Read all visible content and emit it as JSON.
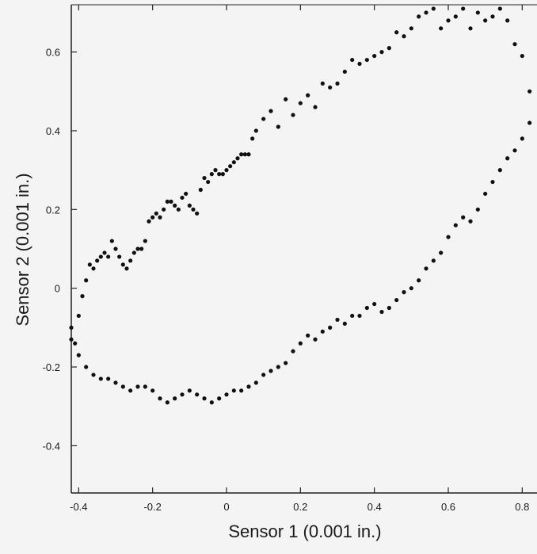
{
  "chart_data": {
    "type": "scatter",
    "title": "",
    "xlabel": "Sensor 1 (0.001 in.)",
    "ylabel": "Sensor 2 (0.001 in.)",
    "xlim": [
      -0.42,
      0.84
    ],
    "ylim": [
      -0.52,
      0.72
    ],
    "xticks": [
      -0.4,
      -0.2,
      0,
      0.2,
      0.4,
      0.6,
      0.8
    ],
    "xtick_labels": [
      "-0.4",
      "-0.2",
      "0",
      "0.2",
      "0.4",
      "0.6",
      "0.8"
    ],
    "yticks": [
      -0.4,
      -0.2,
      0,
      0.2,
      0.4,
      0.6
    ],
    "ytick_labels": [
      "-0.4",
      "-0.2",
      "0",
      "0.2",
      "0.4",
      "0.6"
    ],
    "grid": false,
    "legend": "none",
    "marker_color": "#111111",
    "series": [
      {
        "x": [
          -0.42,
          -0.41,
          -0.4,
          -0.39,
          -0.38,
          -0.37,
          -0.36,
          -0.35,
          -0.34,
          -0.33,
          -0.32,
          -0.31,
          -0.3,
          -0.29,
          -0.28,
          -0.27,
          -0.26,
          -0.25,
          -0.24,
          -0.23,
          -0.22,
          -0.21,
          -0.2,
          -0.19,
          -0.18,
          -0.17,
          -0.16,
          -0.15,
          -0.14,
          -0.13,
          -0.12,
          -0.11,
          -0.1,
          -0.09,
          -0.08,
          -0.07,
          -0.06,
          -0.05,
          -0.04,
          -0.03,
          -0.02,
          -0.01,
          0.0,
          0.01,
          0.02,
          0.03,
          0.04,
          0.05,
          0.06,
          0.07,
          0.08,
          0.1,
          0.12,
          0.14,
          0.16,
          0.18,
          0.2,
          0.22,
          0.24,
          0.26,
          0.28,
          0.3,
          0.32,
          0.34,
          0.36,
          0.38,
          0.4,
          0.42,
          0.44,
          0.46,
          0.48,
          0.5,
          0.52,
          0.54,
          0.56,
          0.58,
          0.6,
          0.62,
          0.64,
          0.66,
          0.68,
          0.7,
          0.72,
          0.74,
          0.76,
          0.78,
          0.8,
          0.82
        ],
        "y": [
          -0.1,
          -0.14,
          -0.07,
          -0.02,
          0.02,
          0.06,
          0.05,
          0.07,
          0.08,
          0.09,
          0.08,
          0.12,
          0.1,
          0.08,
          0.06,
          0.05,
          0.07,
          0.09,
          0.1,
          0.1,
          0.12,
          0.17,
          0.18,
          0.19,
          0.18,
          0.2,
          0.22,
          0.22,
          0.21,
          0.2,
          0.23,
          0.24,
          0.21,
          0.2,
          0.19,
          0.25,
          0.28,
          0.27,
          0.29,
          0.3,
          0.29,
          0.29,
          0.3,
          0.31,
          0.32,
          0.33,
          0.34,
          0.34,
          0.34,
          0.38,
          0.4,
          0.43,
          0.45,
          0.41,
          0.48,
          0.44,
          0.47,
          0.49,
          0.46,
          0.52,
          0.51,
          0.52,
          0.55,
          0.58,
          0.57,
          0.58,
          0.59,
          0.6,
          0.61,
          0.65,
          0.64,
          0.66,
          0.69,
          0.7,
          0.71,
          0.66,
          0.68,
          0.69,
          0.71,
          0.66,
          0.7,
          0.68,
          0.69,
          0.71,
          0.68,
          0.62,
          0.59,
          0.5
        ]
      },
      {
        "x": [
          -0.42,
          -0.4,
          -0.38,
          -0.36,
          -0.34,
          -0.32,
          -0.3,
          -0.28,
          -0.26,
          -0.24,
          -0.22,
          -0.2,
          -0.18,
          -0.16,
          -0.14,
          -0.12,
          -0.1,
          -0.08,
          -0.06,
          -0.04,
          -0.02,
          0.0,
          0.02,
          0.04,
          0.06,
          0.08,
          0.1,
          0.12,
          0.14,
          0.16,
          0.18,
          0.2,
          0.22,
          0.24,
          0.26,
          0.28,
          0.3,
          0.32,
          0.34,
          0.36,
          0.38,
          0.4,
          0.42,
          0.44,
          0.46,
          0.48,
          0.5,
          0.52,
          0.54,
          0.56,
          0.58,
          0.6,
          0.62,
          0.64,
          0.66,
          0.68,
          0.7,
          0.72,
          0.74,
          0.76,
          0.78,
          0.8,
          0.82
        ],
        "y": [
          -0.13,
          -0.17,
          -0.2,
          -0.22,
          -0.23,
          -0.23,
          -0.24,
          -0.25,
          -0.26,
          -0.25,
          -0.25,
          -0.26,
          -0.28,
          -0.29,
          -0.28,
          -0.27,
          -0.26,
          -0.27,
          -0.28,
          -0.29,
          -0.28,
          -0.27,
          -0.26,
          -0.26,
          -0.25,
          -0.24,
          -0.22,
          -0.21,
          -0.2,
          -0.19,
          -0.16,
          -0.14,
          -0.12,
          -0.13,
          -0.11,
          -0.1,
          -0.08,
          -0.09,
          -0.07,
          -0.07,
          -0.05,
          -0.04,
          -0.06,
          -0.05,
          -0.03,
          -0.01,
          0.0,
          0.02,
          0.05,
          0.07,
          0.09,
          0.13,
          0.16,
          0.18,
          0.17,
          0.2,
          0.24,
          0.27,
          0.3,
          0.33,
          0.35,
          0.38,
          0.42
        ]
      }
    ]
  }
}
